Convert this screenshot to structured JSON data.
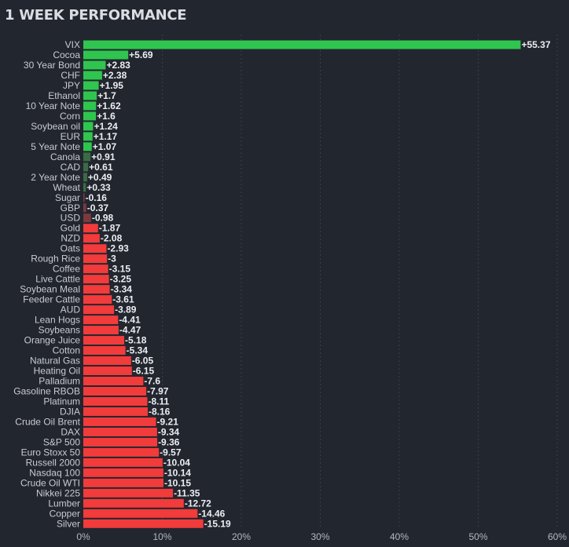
{
  "title": "1 WEEK PERFORMANCE",
  "chart_data": {
    "type": "bar",
    "orientation": "horizontal",
    "title": "1 WEEK PERFORMANCE",
    "xlabel": "",
    "ylabel": "",
    "xlim": [
      0,
      60
    ],
    "x_ticks": [
      "0%",
      "10%",
      "20%",
      "30%",
      "40%",
      "50%",
      "60%"
    ],
    "grid": "vertical dotted",
    "colors": {
      "positive_strong": "#2fc54f",
      "positive_weak": "#3b6b45",
      "negative_weak": "#7a3a40",
      "negative_strong": "#f23b3b"
    },
    "categories": [
      "VIX",
      "Cocoa",
      "30 Year Bond",
      "CHF",
      "JPY",
      "Ethanol",
      "10 Year Note",
      "Corn",
      "Soybean oil",
      "EUR",
      "5 Year Note",
      "Canola",
      "CAD",
      "2 Year Note",
      "Wheat",
      "Sugar",
      "GBP",
      "USD",
      "Gold",
      "NZD",
      "Oats",
      "Rough Rice",
      "Coffee",
      "Live Cattle",
      "Soybean Meal",
      "Feeder Cattle",
      "AUD",
      "Lean Hogs",
      "Soybeans",
      "Orange Juice",
      "Cotton",
      "Natural Gas",
      "Heating Oil",
      "Palladium",
      "Gasoline RBOB",
      "Platinum",
      "DJIA",
      "Crude Oil Brent",
      "DAX",
      "S&P 500",
      "Euro Stoxx 50",
      "Russell 2000",
      "Nasdaq 100",
      "Crude Oil WTI",
      "Nikkei 225",
      "Lumber",
      "Copper",
      "Silver"
    ],
    "values": [
      55.37,
      5.69,
      2.83,
      2.38,
      1.95,
      1.7,
      1.62,
      1.6,
      1.24,
      1.17,
      1.07,
      0.91,
      0.61,
      0.49,
      0.33,
      -0.16,
      -0.37,
      -0.98,
      -1.87,
      -2.08,
      -2.93,
      -3,
      -3.15,
      -3.25,
      -3.34,
      -3.61,
      -3.89,
      -4.41,
      -4.47,
      -5.18,
      -5.34,
      -6.05,
      -6.15,
      -7.6,
      -7.97,
      -8.11,
      -8.16,
      -9.21,
      -9.34,
      -9.36,
      -9.57,
      -10.04,
      -10.14,
      -10.15,
      -11.35,
      -12.72,
      -14.46,
      -15.19
    ],
    "value_labels": [
      "+55.37",
      "+5.69",
      "+2.83",
      "+2.38",
      "+1.95",
      "+1.7",
      "+1.62",
      "+1.6",
      "+1.24",
      "+1.17",
      "+1.07",
      "+0.91",
      "+0.61",
      "+0.49",
      "+0.33",
      "-0.16",
      "-0.37",
      "-0.98",
      "-1.87",
      "-2.08",
      "-2.93",
      "-3",
      "-3.15",
      "-3.25",
      "-3.34",
      "-3.61",
      "-3.89",
      "-4.41",
      "-4.47",
      "-5.18",
      "-5.34",
      "-6.05",
      "-6.15",
      "-7.6",
      "-7.97",
      "-8.11",
      "-8.16",
      "-9.21",
      "-9.34",
      "-9.36",
      "-9.57",
      "-10.04",
      "-10.14",
      "-10.15",
      "-11.35",
      "-12.72",
      "-14.46",
      "-15.19"
    ]
  }
}
